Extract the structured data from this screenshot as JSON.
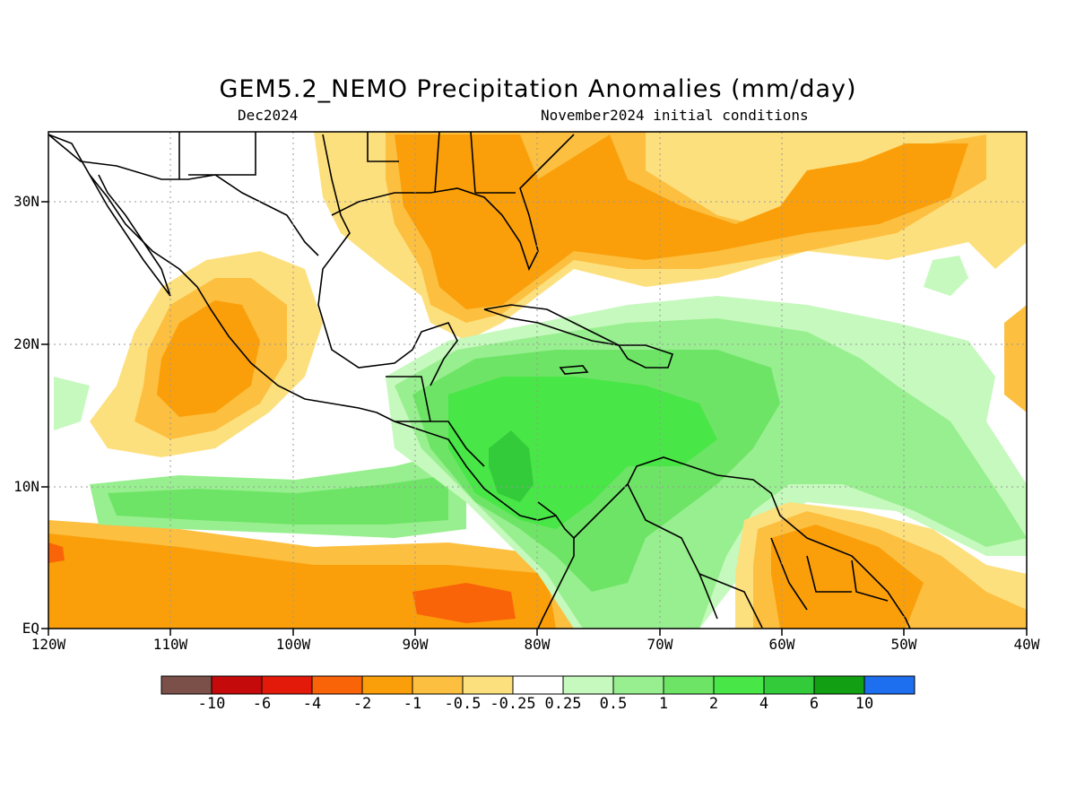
{
  "title": "GEM5.2_NEMO Precipitation Anomalies (mm/day)",
  "subtitle_left": "Dec2024",
  "subtitle_right": "November2024 initial conditions",
  "y_tick_labels": [
    "30N",
    "20N",
    "10N",
    "EQ"
  ],
  "x_tick_labels": [
    "120W",
    "110W",
    "100W",
    "90W",
    "80W",
    "70W",
    "60W",
    "50W",
    "40W"
  ],
  "colorbar": {
    "labels": [
      "-10",
      "-6",
      "-4",
      "-2",
      "-1",
      "-0.5",
      "-0.25",
      "0.25",
      "0.5",
      "1",
      "2",
      "4",
      "6",
      "10"
    ],
    "colors": [
      "#7a5048",
      "#c40a0a",
      "#e31a0a",
      "#fa6409",
      "#fa9f0a",
      "#fcbf40",
      "#fde07e",
      "#ffffff",
      "#c5f9bd",
      "#98ef8f",
      "#6ee466",
      "#48e646",
      "#34cb3b",
      "#129f13",
      "#1e6ef0"
    ]
  },
  "map": {
    "region": "Central America and Caribbean",
    "lon_range": [
      -120,
      -40
    ],
    "lat_range": [
      0,
      35
    ],
    "grid": true
  }
}
